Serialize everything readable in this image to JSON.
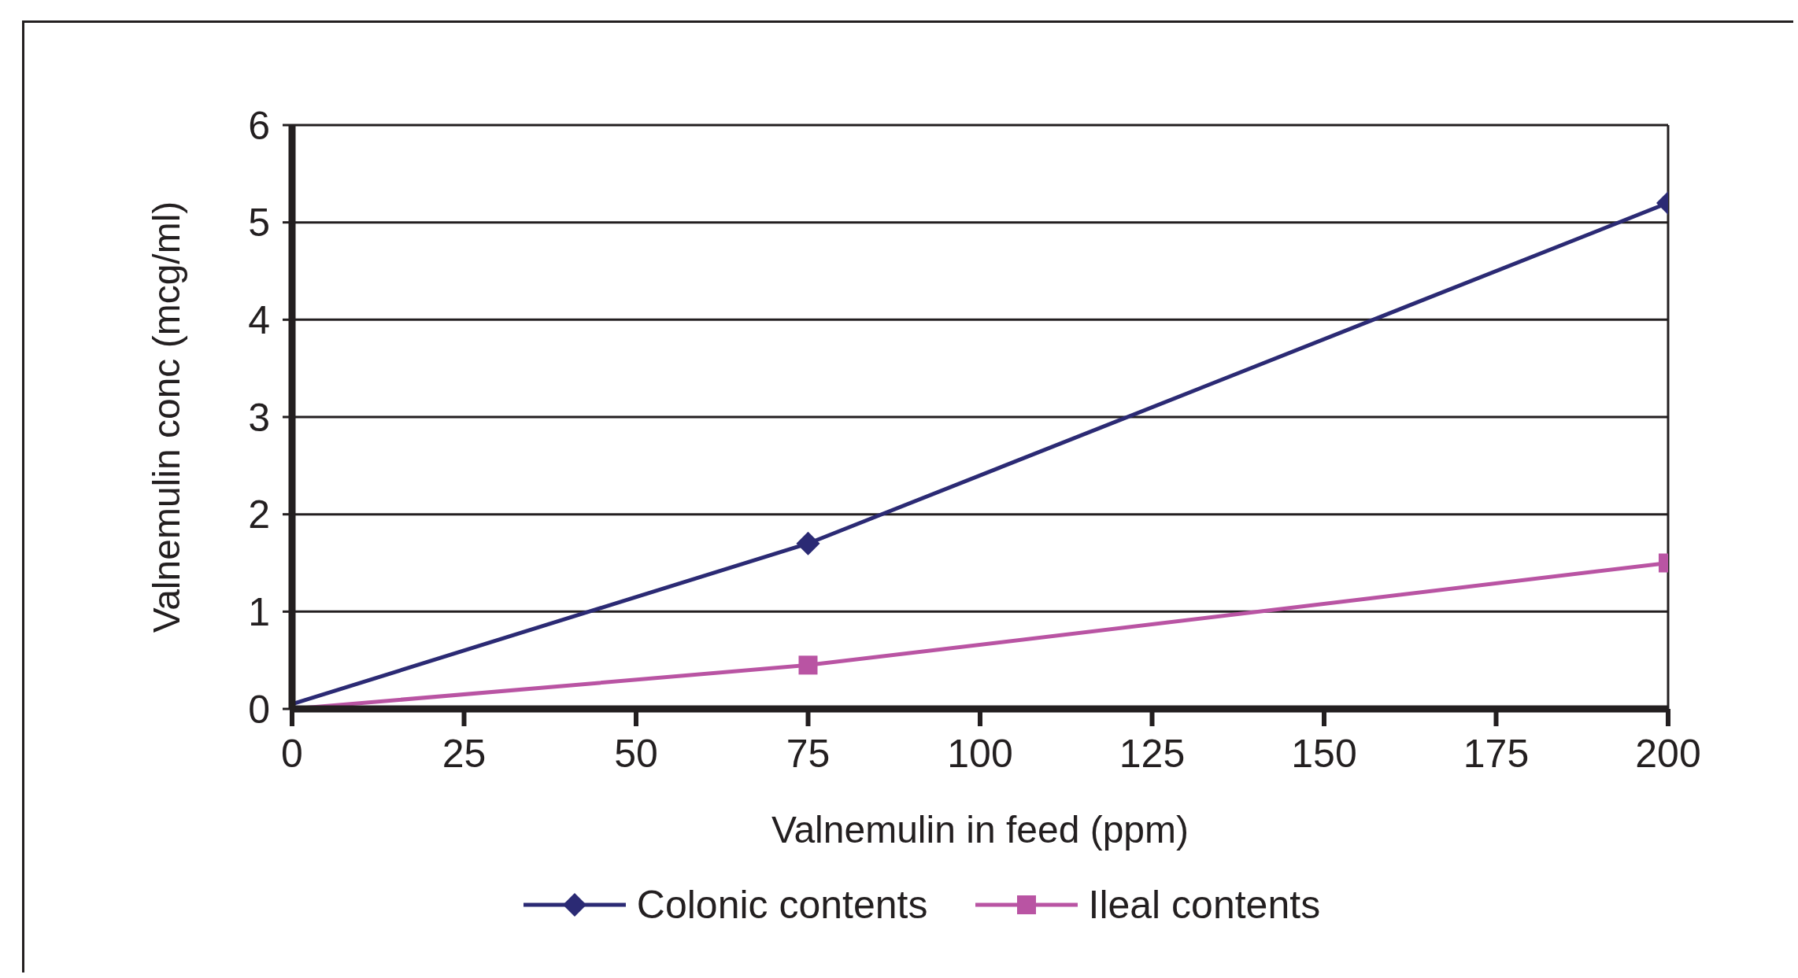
{
  "chart_data": {
    "type": "line",
    "xlabel": "Valnemulin in feed (ppm)",
    "ylabel": "Valnemulin conc (mcg/ml)",
    "x": [
      0,
      75,
      200
    ],
    "series": [
      {
        "name": "Colonic contents",
        "color": "#2b2a74",
        "values": [
          0.05,
          1.7,
          5.2
        ],
        "marker": "diamond"
      },
      {
        "name": "Ileal contents",
        "color": "#b954a3",
        "values": [
          0,
          0.45,
          1.5
        ],
        "marker": "square"
      }
    ],
    "xlim": [
      0,
      200
    ],
    "xticks": [
      0,
      25,
      50,
      75,
      100,
      125,
      150,
      175,
      200
    ],
    "ylim": [
      0,
      6
    ],
    "yticks": [
      0,
      1,
      2,
      3,
      4,
      5,
      6
    ],
    "grid": "y",
    "legend": "bottom"
  }
}
